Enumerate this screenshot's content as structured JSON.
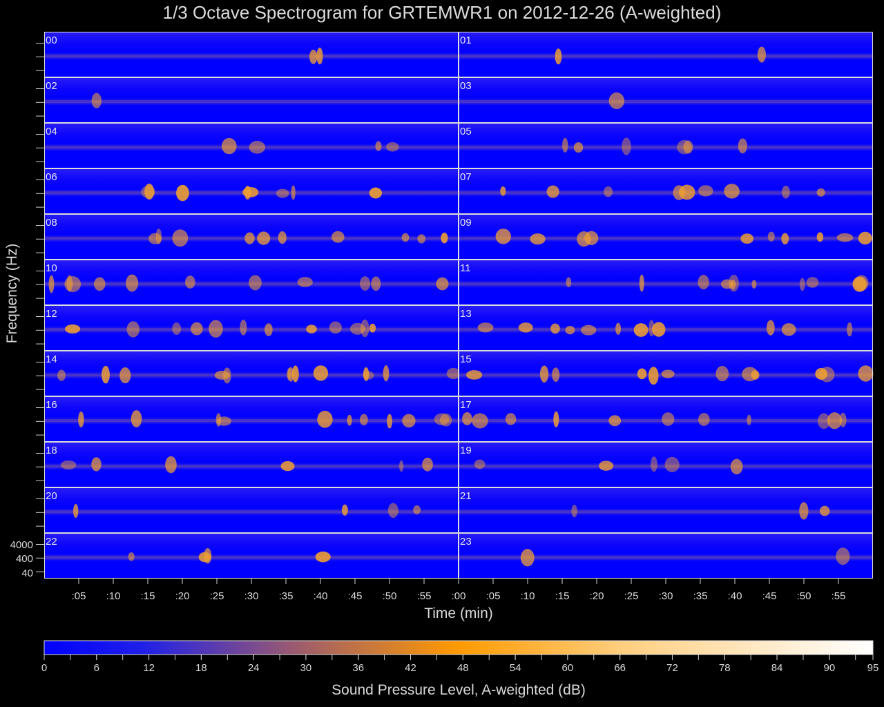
{
  "chart_data": {
    "type": "heatmap",
    "title": "1/3 Octave Spectrogram for GRTEMWR1 on 2012-12-26 (A-weighted)",
    "xlabel": "Time (min)",
    "ylabel": "Frequency (Hz)",
    "x_tick_labels": [
      ":05",
      ":10",
      ":15",
      ":20",
      ":25",
      ":30",
      ":35",
      ":40",
      ":45",
      ":50",
      ":55",
      ":00",
      ":05",
      ":10",
      ":15",
      ":20",
      ":25",
      ":30",
      ":35",
      ":40",
      ":45",
      ":50",
      ":55"
    ],
    "y_tick_labels": [
      "4000",
      "400",
      "40"
    ],
    "y_tick_values_hz": [
      4000,
      400,
      40
    ],
    "hour_panels": [
      "00",
      "01",
      "02",
      "03",
      "04",
      "05",
      "06",
      "07",
      "08",
      "09",
      "10",
      "11",
      "12",
      "13",
      "14",
      "15",
      "16",
      "17",
      "18",
      "19",
      "20",
      "21",
      "22",
      "23"
    ],
    "colorbar": {
      "label": "Sound Pressure Level, A-weighted (dB)",
      "min": 0,
      "max": 95,
      "tick_labels": [
        "0",
        "6",
        "12",
        "18",
        "24",
        "30",
        "36",
        "42",
        "48",
        "54",
        "60",
        "66",
        "72",
        "78",
        "84",
        "90",
        "95"
      ],
      "tick_values": [
        0,
        6,
        12,
        18,
        24,
        30,
        36,
        42,
        48,
        54,
        60,
        66,
        72,
        78,
        84,
        90,
        95
      ],
      "colors": [
        "#0000ff",
        "#a06060",
        "#ff9900",
        "#ffffff"
      ]
    },
    "background_color": "#0000ff",
    "event_color": "#f0a030",
    "activity_level_by_hour": [
      0.15,
      0.15,
      0.1,
      0.1,
      0.3,
      0.45,
      0.6,
      0.65,
      0.7,
      0.7,
      0.8,
      0.8,
      0.85,
      0.85,
      0.9,
      0.85,
      0.8,
      0.75,
      0.45,
      0.35,
      0.3,
      0.2,
      0.25,
      0.15
    ]
  }
}
